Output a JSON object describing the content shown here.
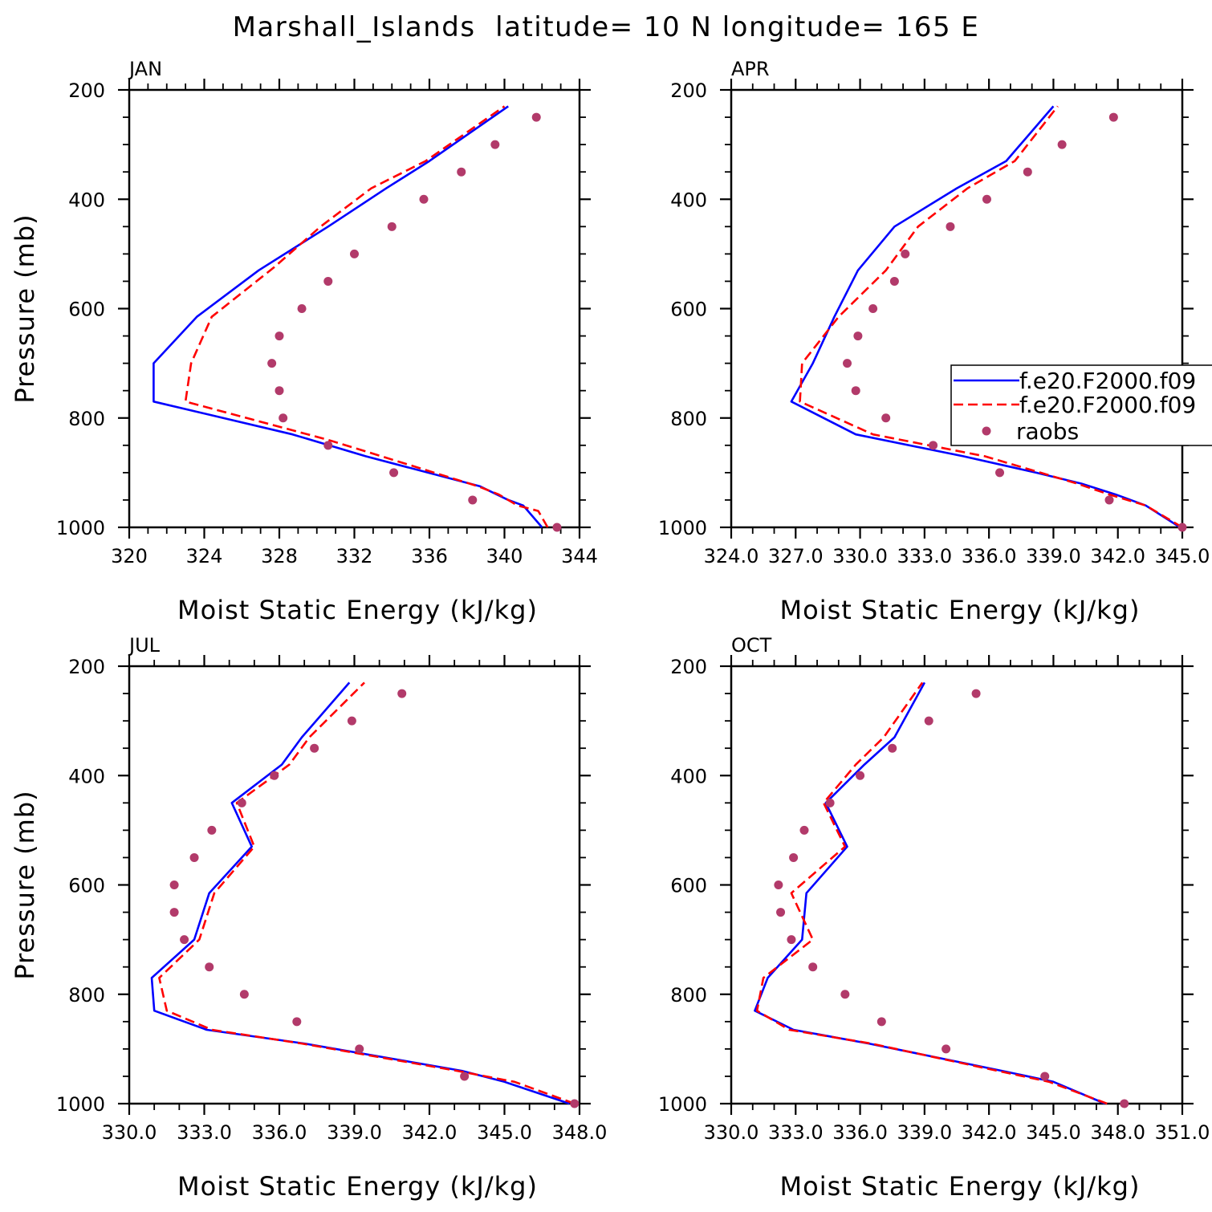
{
  "chart_data": {
    "type": "line",
    "title": "Marshall_Islands  latitude= 10 N longitude= 165 E",
    "xlabel": "Moist Static Energy (kJ/kg)",
    "ylabel": "Pressure (mb)",
    "ylim": [
      1000,
      200
    ],
    "yticks": [
      "200",
      "400",
      "600",
      "800",
      "1000"
    ],
    "legend": {
      "placement": "right, in APR panel",
      "entries": [
        {
          "label": "f.e20.F2000.f09",
          "color": "#0000ff",
          "style": "solid"
        },
        {
          "label": "f.e20.F2000.f09",
          "color": "#ff0000",
          "style": "dashed"
        },
        {
          "label": "raobs",
          "color": "#b23a6a",
          "style": "dots"
        }
      ]
    },
    "panels": [
      {
        "name": "JAN",
        "xlim": [
          320,
          344
        ],
        "xticks": [
          "320",
          "324",
          "328",
          "332",
          "336",
          "340",
          "344"
        ],
        "series": [
          {
            "style": "blue-solid",
            "color": "#0000ff",
            "y": [
              1000,
              960,
              950,
              925,
              870,
              830,
              770,
              700,
              615,
              530,
              450,
              380,
              330,
              230
            ],
            "x": [
              342.0,
              341.0,
              340.2,
              338.7,
              332.6,
              328.7,
              321.3,
              321.3,
              323.6,
              326.9,
              330.6,
              333.7,
              336.0,
              340.2
            ]
          },
          {
            "style": "red-dashed",
            "color": "#ff0000",
            "y": [
              1000,
              970,
              960,
              940,
              925,
              860,
              840,
              770,
              700,
              615,
              525,
              450,
              380,
              330,
              230
            ],
            "x": [
              342.3,
              341.8,
              340.7,
              339.7,
              338.6,
              332.5,
              330.6,
              323.0,
              323.3,
              324.4,
              327.7,
              330.2,
              332.9,
              335.8,
              340.0
            ]
          },
          {
            "style": "raobs-dots",
            "color": "#b23a6a",
            "y": [
              1000,
              950,
              900,
              850,
              800,
              750,
              700,
              650,
              600,
              550,
              500,
              450,
              400,
              350,
              300,
              250
            ],
            "x": [
              342.8,
              338.3,
              334.1,
              330.6,
              328.2,
              328.0,
              327.6,
              328.0,
              329.2,
              330.6,
              332.0,
              334.0,
              335.7,
              337.7,
              339.5,
              341.7
            ]
          }
        ]
      },
      {
        "name": "APR",
        "xlim": [
          324.0,
          345.0
        ],
        "xticks": [
          "324.0",
          "327.0",
          "330.0",
          "333.0",
          "336.0",
          "339.0",
          "342.0",
          "345.0"
        ],
        "series": [
          {
            "style": "blue-solid",
            "color": "#0000ff",
            "y": [
              1000,
              960,
              940,
              920,
              900,
              870,
              830,
              770,
              700,
              615,
              530,
              450,
              380,
              330,
              230
            ],
            "x": [
              344.9,
              343.3,
              341.9,
              340.3,
              338.2,
              334.8,
              329.8,
              326.8,
              327.8,
              328.8,
              329.9,
              331.6,
              334.5,
              336.8,
              339.0
            ]
          },
          {
            "style": "red-dashed",
            "color": "#ff0000",
            "y": [
              1000,
              960,
              940,
              920,
              900,
              870,
              830,
              770,
              700,
              615,
              530,
              450,
              380,
              330,
              230
            ],
            "x": [
              345.0,
              343.3,
              341.6,
              340.1,
              338.4,
              335.8,
              330.6,
              327.2,
              327.3,
              329.0,
              331.2,
              332.7,
              335.0,
              337.2,
              339.2
            ]
          },
          {
            "style": "raobs-dots",
            "color": "#b23a6a",
            "y": [
              1000,
              950,
              900,
              850,
              800,
              750,
              700,
              650,
              600,
              550,
              500,
              450,
              400,
              350,
              300,
              250
            ],
            "x": [
              345.0,
              341.6,
              336.5,
              333.4,
              331.2,
              329.8,
              329.4,
              329.9,
              330.6,
              331.6,
              332.1,
              334.2,
              335.9,
              337.8,
              339.4,
              341.8
            ]
          }
        ]
      },
      {
        "name": "JUL",
        "xlim": [
          330.0,
          348.0
        ],
        "xticks": [
          "330.0",
          "333.0",
          "336.0",
          "339.0",
          "342.0",
          "345.0",
          "348.0"
        ],
        "series": [
          {
            "style": "blue-solid",
            "color": "#0000ff",
            "y": [
              1000,
              960,
              940,
              890,
              865,
              830,
              770,
              700,
              615,
              530,
              450,
              380,
              330,
              230
            ],
            "x": [
              347.6,
              345.0,
              343.3,
              337.0,
              333.1,
              331.0,
              330.9,
              332.6,
              333.2,
              334.9,
              334.1,
              336.1,
              336.9,
              338.8
            ]
          },
          {
            "style": "red-dashed",
            "color": "#ff0000",
            "y": [
              1000,
              960,
              940,
              890,
              865,
              830,
              770,
              700,
              615,
              530,
              450,
              380,
              330,
              230
            ],
            "x": [
              347.8,
              345.4,
              343.1,
              336.9,
              333.3,
              331.5,
              331.2,
              332.8,
              333.4,
              335.0,
              334.3,
              336.4,
              337.2,
              339.4
            ]
          },
          {
            "style": "raobs-dots",
            "color": "#b23a6a",
            "y": [
              1000,
              950,
              900,
              850,
              800,
              750,
              700,
              650,
              600,
              550,
              500,
              450,
              400,
              350,
              300,
              250
            ],
            "x": [
              347.8,
              343.4,
              339.2,
              336.7,
              334.6,
              333.2,
              332.2,
              331.8,
              331.8,
              332.6,
              333.3,
              334.5,
              335.8,
              337.4,
              338.9,
              340.9
            ]
          }
        ]
      },
      {
        "name": "OCT",
        "xlim": [
          330.0,
          351.0
        ],
        "xticks": [
          "330.0",
          "333.0",
          "336.0",
          "339.0",
          "342.0",
          "345.0",
          "348.0",
          "351.0"
        ],
        "series": [
          {
            "style": "blue-solid",
            "color": "#0000ff",
            "y": [
              1000,
              960,
              940,
              890,
              865,
              830,
              770,
              700,
              615,
              530,
              450,
              380,
              330,
              230
            ],
            "x": [
              347.4,
              345.0,
              342.6,
              336.4,
              332.9,
              331.1,
              331.7,
              333.3,
              333.5,
              335.4,
              334.4,
              336.2,
              337.6,
              339.0
            ]
          },
          {
            "style": "red-dashed",
            "color": "#ff0000",
            "y": [
              1000,
              960,
              940,
              890,
              865,
              830,
              770,
              700,
              615,
              530,
              450,
              380,
              330,
              230
            ],
            "x": [
              347.5,
              344.8,
              342.4,
              336.5,
              332.7,
              331.2,
              331.5,
              333.8,
              332.8,
              335.3,
              334.3,
              335.8,
              337.1,
              338.9
            ]
          },
          {
            "style": "raobs-dots",
            "color": "#b23a6a",
            "y": [
              1000,
              950,
              900,
              850,
              800,
              750,
              700,
              650,
              600,
              550,
              500,
              450,
              400,
              350,
              300,
              250
            ],
            "x": [
              348.3,
              344.6,
              340.0,
              337.0,
              335.3,
              333.8,
              332.8,
              332.3,
              332.2,
              332.9,
              333.4,
              334.6,
              336.0,
              337.5,
              339.2,
              341.4
            ]
          }
        ]
      }
    ]
  }
}
